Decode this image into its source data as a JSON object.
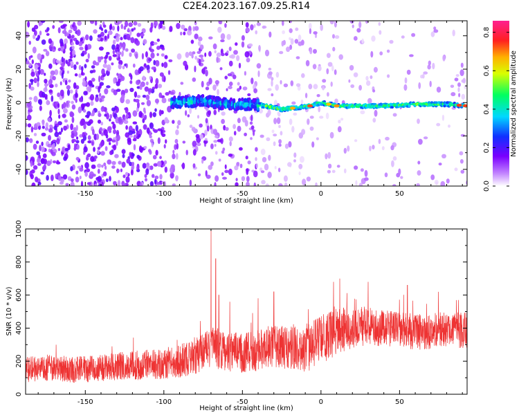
{
  "figure_title": "C2E4.2023.167.09.25.R14",
  "chart_data": [
    {
      "type": "heatmap",
      "title": "",
      "xlabel": "Height of straight line (km)",
      "ylabel": "Frequency (Hz)",
      "xlim": [
        -188,
        93
      ],
      "ylim": [
        -50,
        49
      ],
      "xticks": [
        -150,
        -100,
        -50,
        0,
        50
      ],
      "yticks": [
        -40,
        -20,
        0,
        20,
        40
      ],
      "grid": false,
      "colorbar": {
        "label": "Normalized spectral amplitude",
        "range": [
          0,
          0.86
        ],
        "ticks": [
          0.0,
          0.2,
          0.4,
          0.6,
          0.8
        ],
        "colormap": "rainbow (white-purple-blue-cyan-green-yellow-orange-red-magenta)"
      },
      "ridge": {
        "description": "Bright narrowband ridge near 0 Hz from about -95 km to 93 km, frequency drifting from about 0 Hz to -4 Hz around -25 km and back to about -1 Hz",
        "points": [
          {
            "x": -95,
            "y": 0
          },
          {
            "x": -75,
            "y": 1
          },
          {
            "x": -60,
            "y": -1
          },
          {
            "x": -45,
            "y": -1
          },
          {
            "x": -35,
            "y": -2
          },
          {
            "x": -25,
            "y": -4
          },
          {
            "x": -15,
            "y": -3
          },
          {
            "x": -7,
            "y": -2
          },
          {
            "x": 0,
            "y": 0
          },
          {
            "x": 10,
            "y": -2
          },
          {
            "x": 20,
            "y": -2
          },
          {
            "x": 40,
            "y": -2
          },
          {
            "x": 60,
            "y": -1
          },
          {
            "x": 80,
            "y": -1
          },
          {
            "x": 93,
            "y": -2
          }
        ],
        "peak_amplitude": 0.86
      }
    },
    {
      "type": "line",
      "title": "",
      "xlabel": "Height of straight line (km)",
      "ylabel": "SNR (10 * v/v)",
      "xlim": [
        -188,
        93
      ],
      "ylim": [
        0,
        1000
      ],
      "xticks": [
        -150,
        -100,
        -50,
        0,
        50
      ],
      "yticks": [
        0,
        200,
        400,
        600,
        800,
        1000
      ],
      "grid": false,
      "series": [
        {
          "color": "#ee3333",
          "x": [
            -188,
            -175,
            -160,
            -150,
            -140,
            -125,
            -110,
            -100,
            -90,
            -80,
            -70,
            -60,
            -50,
            -40,
            -30,
            -20,
            -10,
            0,
            10,
            20,
            30,
            40,
            50,
            60,
            70,
            80,
            93
          ],
          "y": [
            150,
            160,
            150,
            150,
            160,
            170,
            180,
            185,
            200,
            230,
            280,
            260,
            250,
            270,
            290,
            280,
            270,
            330,
            380,
            400,
            410,
            400,
            390,
            380,
            380,
            390,
            390
          ],
          "spread": [
            80,
            80,
            80,
            80,
            80,
            90,
            90,
            95,
            100,
            110,
            130,
            120,
            120,
            130,
            130,
            130,
            140,
            150,
            140,
            130,
            120,
            110,
            110,
            110,
            110,
            110,
            110
          ],
          "spikes": [
            {
              "x": -70,
              "y": 1000
            },
            {
              "x": -67,
              "y": 820
            },
            {
              "x": -65,
              "y": 600
            },
            {
              "x": -58,
              "y": 560
            },
            {
              "x": -30,
              "y": 620
            },
            {
              "x": 8,
              "y": 680
            },
            {
              "x": 12,
              "y": 700
            },
            {
              "x": 30,
              "y": 680
            },
            {
              "x": 55,
              "y": 660
            }
          ]
        }
      ]
    }
  ]
}
